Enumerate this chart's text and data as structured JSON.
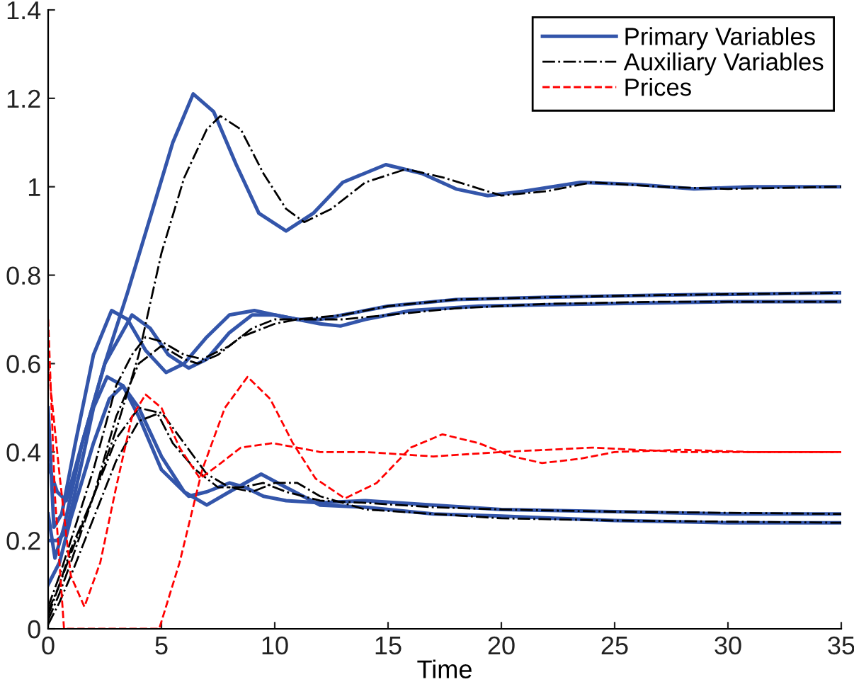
{
  "chart_data": {
    "type": "line",
    "xlabel": "Time",
    "xlim": [
      0,
      35
    ],
    "ylim": [
      0,
      1.4
    ],
    "xticks": [
      0,
      5,
      10,
      15,
      20,
      25,
      30,
      35
    ],
    "yticks": [
      0,
      0.2,
      0.4,
      0.6,
      0.8,
      1,
      1.2,
      1.4
    ],
    "grid": false,
    "legend": "top right",
    "marker": "none",
    "series": [
      {
        "name": "Primary Variables",
        "color": "#3355aa",
        "line_style": "solid",
        "x": [
          0,
          0.4,
          0.8,
          1.5,
          2.5,
          3.5,
          4.5,
          5.5,
          6.4,
          7.3,
          8.3,
          9.3,
          10.5,
          11.7,
          13,
          14.9,
          16.5,
          18,
          19.4,
          21,
          23.5,
          26,
          28.5,
          31,
          35
        ],
        "values": [
          0.37,
          0.31,
          0.29,
          0.42,
          0.6,
          0.76,
          0.93,
          1.1,
          1.21,
          1.17,
          1.05,
          0.94,
          0.9,
          0.94,
          1.01,
          1.05,
          1.03,
          0.995,
          0.98,
          0.99,
          1.01,
          1.005,
          0.995,
          1.0,
          1.0
        ]
      },
      {
        "color": "#3355aa",
        "line_style": "solid",
        "x": [
          0,
          0.25,
          0.6,
          1.2,
          2,
          2.8,
          3.5,
          4.3,
          5.2,
          6,
          7,
          8,
          9.1,
          10,
          11,
          12,
          13,
          15,
          18,
          22,
          27,
          35
        ],
        "values": [
          0.5,
          0.23,
          0.26,
          0.42,
          0.62,
          0.72,
          0.7,
          0.63,
          0.58,
          0.6,
          0.66,
          0.71,
          0.72,
          0.71,
          0.7,
          0.7,
          0.71,
          0.73,
          0.745,
          0.75,
          0.755,
          0.76
        ]
      },
      {
        "color": "#3355aa",
        "line_style": "solid",
        "x": [
          0,
          0.3,
          0.7,
          1.5,
          2.5,
          3.7,
          4.5,
          5.3,
          6.2,
          7,
          8,
          9,
          10,
          11,
          12,
          12.9,
          14,
          16,
          19,
          24,
          30,
          35
        ],
        "values": [
          0.26,
          0.16,
          0.23,
          0.42,
          0.6,
          0.71,
          0.68,
          0.62,
          0.59,
          0.61,
          0.67,
          0.71,
          0.71,
          0.7,
          0.69,
          0.685,
          0.7,
          0.72,
          0.73,
          0.735,
          0.74,
          0.74
        ]
      },
      {
        "color": "#3355aa",
        "line_style": "solid",
        "x": [
          0,
          0.4,
          0.8,
          1.5,
          2,
          2.6,
          3.3,
          4,
          5,
          6.2,
          7,
          8,
          8.7,
          9.5,
          10.5,
          12,
          14,
          17,
          20,
          25,
          30,
          35
        ],
        "values": [
          0.2,
          0.2,
          0.22,
          0.38,
          0.5,
          0.57,
          0.55,
          0.48,
          0.36,
          0.3,
          0.31,
          0.33,
          0.32,
          0.3,
          0.29,
          0.285,
          0.29,
          0.28,
          0.27,
          0.265,
          0.26,
          0.26
        ]
      },
      {
        "color": "#3355aa",
        "line_style": "solid",
        "x": [
          0,
          0.5,
          1,
          2,
          2.7,
          3.3,
          4,
          5,
          6,
          7,
          8,
          9.4,
          10.5,
          12,
          14,
          17,
          20,
          25,
          30,
          35
        ],
        "values": [
          0.1,
          0.15,
          0.25,
          0.42,
          0.52,
          0.55,
          0.5,
          0.39,
          0.31,
          0.28,
          0.31,
          0.35,
          0.32,
          0.28,
          0.275,
          0.26,
          0.255,
          0.245,
          0.24,
          0.24
        ]
      },
      {
        "name": "Auxiliary Variables",
        "color": "#000000",
        "line_style": "dashdot",
        "x": [
          0,
          0.5,
          1,
          2,
          3,
          4,
          5,
          6,
          7,
          7.6,
          8.5,
          9.5,
          10.5,
          11.3,
          12.5,
          14,
          15.8,
          17.5,
          20,
          22,
          24,
          27,
          30,
          35
        ],
        "values": [
          0.03,
          0.1,
          0.18,
          0.3,
          0.45,
          0.62,
          0.85,
          1.02,
          1.13,
          1.16,
          1.13,
          1.03,
          0.95,
          0.92,
          0.95,
          1.01,
          1.04,
          1.02,
          0.98,
          0.99,
          1.01,
          1.0,
          0.995,
          1.0
        ]
      },
      {
        "color": "#000000",
        "line_style": "dashdot",
        "x": [
          0,
          0.5,
          1,
          2,
          3,
          3.7,
          4.3,
          5,
          6,
          6.8,
          8,
          9,
          10,
          11,
          13,
          15,
          18,
          22,
          27,
          35
        ],
        "values": [
          0.05,
          0.12,
          0.2,
          0.36,
          0.55,
          0.62,
          0.66,
          0.65,
          0.62,
          0.61,
          0.64,
          0.68,
          0.7,
          0.7,
          0.71,
          0.73,
          0.745,
          0.75,
          0.755,
          0.76
        ]
      },
      {
        "color": "#000000",
        "line_style": "dashdot",
        "x": [
          0,
          0.5,
          1,
          2,
          3,
          4,
          5,
          6,
          6.6,
          7.5,
          8.5,
          10,
          11,
          13,
          15,
          18,
          22,
          27,
          35
        ],
        "values": [
          0.02,
          0.08,
          0.15,
          0.3,
          0.48,
          0.6,
          0.64,
          0.61,
          0.6,
          0.62,
          0.66,
          0.69,
          0.7,
          0.7,
          0.71,
          0.725,
          0.735,
          0.74,
          0.74
        ]
      },
      {
        "color": "#000000",
        "line_style": "dashdot",
        "x": [
          0,
          0.5,
          1,
          2,
          3,
          4,
          4.8,
          5.5,
          6.5,
          7.5,
          8.5,
          9.5,
          10.5,
          12,
          14,
          17,
          20,
          25,
          35
        ],
        "values": [
          0.04,
          0.1,
          0.17,
          0.3,
          0.43,
          0.5,
          0.49,
          0.42,
          0.36,
          0.32,
          0.32,
          0.33,
          0.31,
          0.29,
          0.285,
          0.275,
          0.27,
          0.265,
          0.26
        ]
      },
      {
        "color": "#000000",
        "line_style": "dashdot",
        "x": [
          0,
          0.5,
          1,
          2,
          3,
          4,
          5,
          6,
          7,
          8,
          9,
          10,
          11,
          12,
          14,
          17,
          20,
          25,
          35
        ],
        "values": [
          0.01,
          0.06,
          0.12,
          0.25,
          0.38,
          0.47,
          0.49,
          0.42,
          0.35,
          0.32,
          0.31,
          0.33,
          0.33,
          0.3,
          0.27,
          0.26,
          0.25,
          0.245,
          0.24
        ]
      },
      {
        "name": "Prices",
        "color": "#ff0000",
        "line_style": "dashed",
        "x": [
          0,
          0.3,
          0.7,
          2,
          3,
          4,
          4.9,
          5.8,
          6.8,
          7.8,
          8.8,
          9.8,
          10.8,
          11.8,
          13.1,
          14.5,
          16,
          17.4,
          19,
          20.5,
          21.8,
          23.5,
          25,
          28,
          31,
          35
        ],
        "values": [
          0.7,
          0.3,
          0,
          0,
          0,
          0,
          0,
          0.15,
          0.36,
          0.5,
          0.57,
          0.52,
          0.42,
          0.34,
          0.295,
          0.33,
          0.41,
          0.44,
          0.42,
          0.39,
          0.375,
          0.385,
          0.4,
          0.405,
          0.4,
          0.4
        ]
      },
      {
        "color": "#ff0000",
        "line_style": "dashed",
        "x": [
          0,
          0.5,
          1,
          1.6,
          2.3,
          3,
          3.7,
          4.3,
          5,
          5.8,
          6.7,
          7.5,
          8.5,
          9.9,
          11,
          12,
          14,
          17,
          20,
          24,
          28,
          31,
          35
        ],
        "values": [
          0.6,
          0.35,
          0.12,
          0.05,
          0.15,
          0.32,
          0.48,
          0.53,
          0.5,
          0.41,
          0.34,
          0.37,
          0.41,
          0.42,
          0.41,
          0.4,
          0.4,
          0.39,
          0.4,
          0.41,
          0.4,
          0.4,
          0.4
        ]
      }
    ]
  }
}
